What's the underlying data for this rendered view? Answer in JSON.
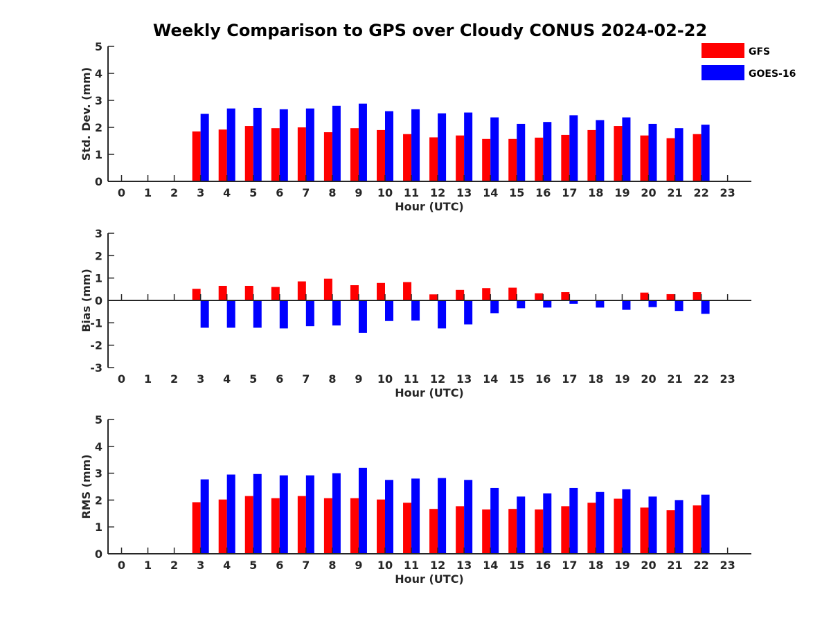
{
  "title": "Weekly Comparison to GPS over Cloudy CONUS 2024-02-22",
  "colors": {
    "GFS": "#ff0000",
    "GOES-16": "#0000ff"
  },
  "legend": [
    "GFS",
    "GOES-16"
  ],
  "chart_data": [
    {
      "type": "bar",
      "ylabel": "Std. Dev. (mm)",
      "xlabel": "Hour (UTC)",
      "ylim": [
        0,
        5
      ],
      "yticks": [
        "0",
        "1",
        "2",
        "3",
        "4",
        "5"
      ],
      "categories": [
        "0",
        "1",
        "2",
        "3",
        "4",
        "5",
        "6",
        "7",
        "8",
        "9",
        "10",
        "11",
        "12",
        "13",
        "14",
        "15",
        "16",
        "17",
        "18",
        "19",
        "20",
        "21",
        "22",
        "23"
      ],
      "series": [
        {
          "name": "GFS",
          "values": [
            null,
            null,
            null,
            1.85,
            1.92,
            2.05,
            1.97,
            2.0,
            1.82,
            1.97,
            1.9,
            1.75,
            1.63,
            1.7,
            1.57,
            1.57,
            1.62,
            1.72,
            1.9,
            2.05,
            1.7,
            1.6,
            1.75,
            null
          ]
        },
        {
          "name": "GOES-16",
          "values": [
            null,
            null,
            null,
            2.5,
            2.7,
            2.72,
            2.67,
            2.7,
            2.8,
            2.88,
            2.6,
            2.67,
            2.52,
            2.55,
            2.37,
            2.13,
            2.2,
            2.45,
            2.27,
            2.37,
            2.13,
            1.97,
            2.1,
            null
          ]
        }
      ]
    },
    {
      "type": "bar",
      "ylabel": "Bias (mm)",
      "xlabel": "Hour (UTC)",
      "ylim": [
        -3,
        3
      ],
      "yticks": [
        "-3",
        "-2",
        "-1",
        "0",
        "1",
        "2",
        "3"
      ],
      "categories": [
        "0",
        "1",
        "2",
        "3",
        "4",
        "5",
        "6",
        "7",
        "8",
        "9",
        "10",
        "11",
        "12",
        "13",
        "14",
        "15",
        "16",
        "17",
        "18",
        "19",
        "20",
        "21",
        "22",
        "23"
      ],
      "series": [
        {
          "name": "GFS",
          "values": [
            null,
            null,
            null,
            0.52,
            0.65,
            0.65,
            0.6,
            0.85,
            0.97,
            0.68,
            0.78,
            0.82,
            0.27,
            0.47,
            0.55,
            0.57,
            0.32,
            0.37,
            -0.02,
            -0.02,
            0.35,
            0.28,
            0.37,
            null
          ]
        },
        {
          "name": "GOES-16",
          "values": [
            null,
            null,
            null,
            -1.22,
            -1.22,
            -1.22,
            -1.25,
            -1.15,
            -1.12,
            -1.45,
            -0.92,
            -0.9,
            -1.25,
            -1.07,
            -0.57,
            -0.35,
            -0.32,
            -0.15,
            -0.32,
            -0.42,
            -0.3,
            -0.47,
            -0.6,
            null
          ]
        }
      ]
    },
    {
      "type": "bar",
      "ylabel": "RMS (mm)",
      "xlabel": "Hour (UTC)",
      "ylim": [
        0,
        5
      ],
      "yticks": [
        "0",
        "1",
        "2",
        "3",
        "4",
        "5"
      ],
      "categories": [
        "0",
        "1",
        "2",
        "3",
        "4",
        "5",
        "6",
        "7",
        "8",
        "9",
        "10",
        "11",
        "12",
        "13",
        "14",
        "15",
        "16",
        "17",
        "18",
        "19",
        "20",
        "21",
        "22",
        "23"
      ],
      "series": [
        {
          "name": "GFS",
          "values": [
            null,
            null,
            null,
            1.92,
            2.02,
            2.15,
            2.07,
            2.15,
            2.07,
            2.07,
            2.02,
            1.9,
            1.67,
            1.77,
            1.65,
            1.67,
            1.65,
            1.77,
            1.9,
            2.05,
            1.72,
            1.62,
            1.8,
            null
          ]
        },
        {
          "name": "GOES-16",
          "values": [
            null,
            null,
            null,
            2.77,
            2.95,
            2.97,
            2.92,
            2.92,
            3.0,
            3.2,
            2.75,
            2.8,
            2.82,
            2.75,
            2.45,
            2.13,
            2.25,
            2.45,
            2.3,
            2.4,
            2.13,
            2.0,
            2.2,
            null
          ]
        }
      ]
    }
  ]
}
